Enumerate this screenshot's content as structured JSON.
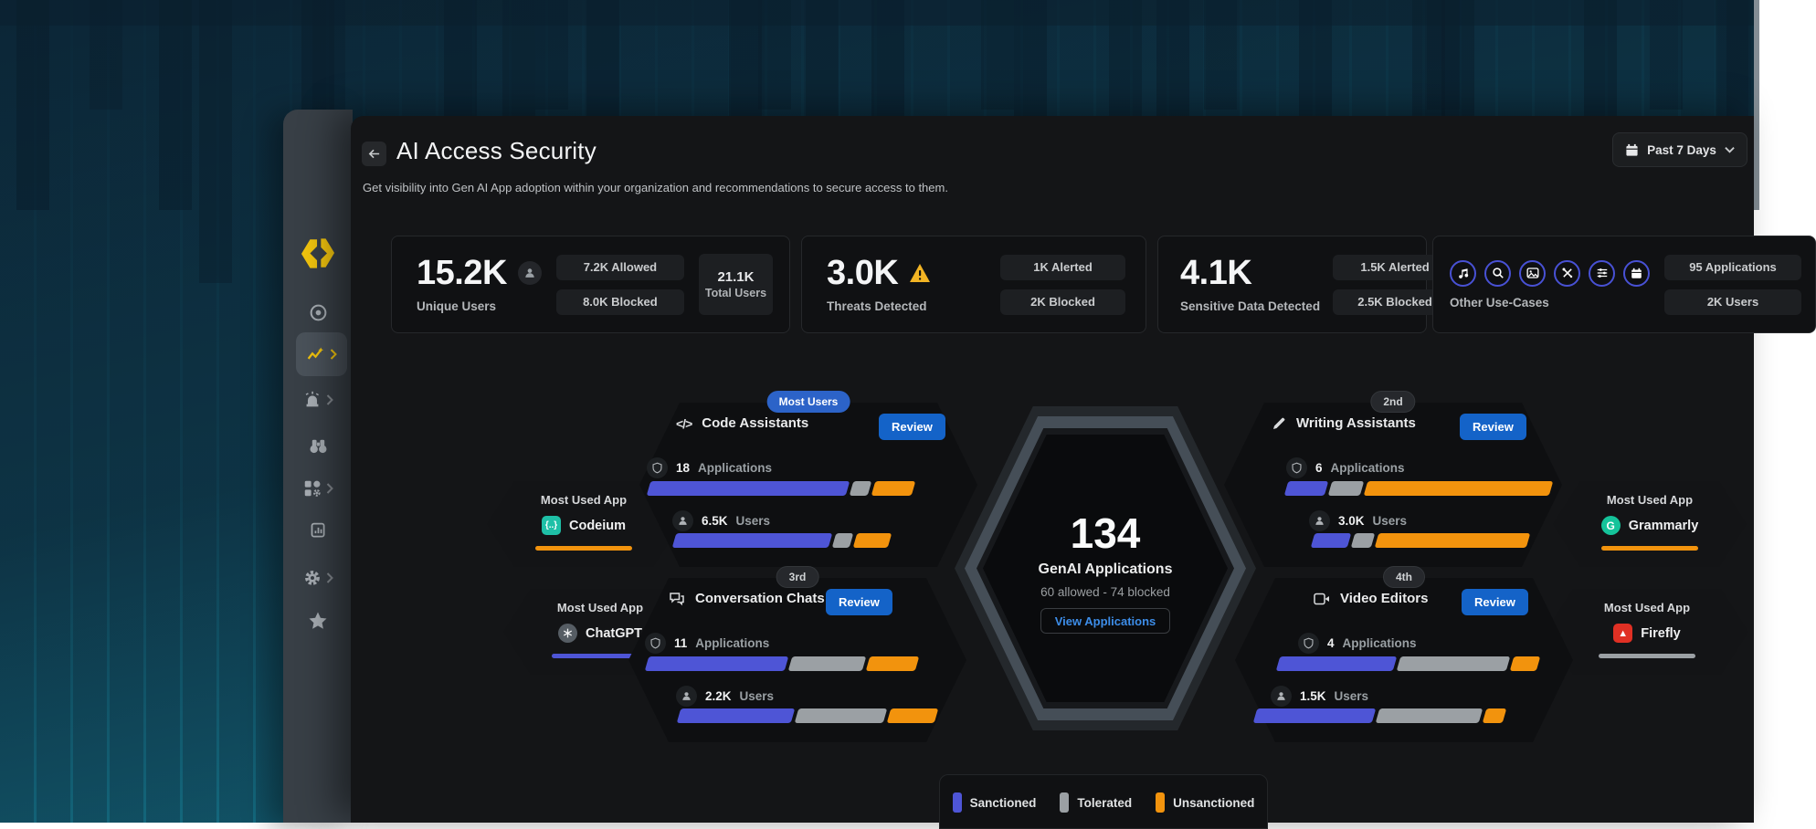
{
  "header": {
    "title": "AI Access Security",
    "subtitle": "Get visibility into Gen AI App adoption within your organization and recommendations to secure access to them.",
    "time_filter": "Past 7 Days"
  },
  "stat_cards": {
    "unique_users": {
      "value": "15.2K",
      "label": "Unique Users",
      "allowed": "7.2K Allowed",
      "blocked": "8.0K Blocked",
      "total_value": "21.1K",
      "total_label": "Total Users"
    },
    "threats": {
      "value": "3.0K",
      "label": "Threats Detected",
      "alerted": "1K Alerted",
      "blocked": "2K Blocked"
    },
    "sensitive_data": {
      "value": "4.1K",
      "label": "Sensitive Data Detected",
      "alerted": "1.5K Alerted",
      "blocked": "2.5K Blocked"
    },
    "other_use_cases": {
      "label": "Other Use-Cases",
      "apps": "95 Applications",
      "users": "2K Users",
      "icons": [
        "music",
        "search",
        "image",
        "tools",
        "filter-list",
        "calendar"
      ]
    }
  },
  "hexagon": {
    "value": "134",
    "label": "GenAI Applications",
    "sub": "60 allowed - 74 blocked",
    "button": "View Applications"
  },
  "categories": [
    {
      "rank_badge": "Most Users",
      "title": "Code Assistants",
      "review": "Review",
      "apps_count": "18",
      "apps_label": "Applications",
      "apps_segments": [
        74,
        7,
        15
      ],
      "users_count": "6.5K",
      "users_label": "Users",
      "users_segments": [
        72,
        8,
        16
      ]
    },
    {
      "rank_badge": "2nd",
      "title": "Writing Assistants",
      "review": "Review",
      "apps_count": "6",
      "apps_label": "Applications",
      "apps_segments": [
        15,
        12,
        69
      ],
      "users_count": "3.0K",
      "users_label": "Users",
      "users_segments": [
        17,
        9,
        70
      ]
    },
    {
      "rank_badge": "3rd",
      "title": "Conversation Chats",
      "review": "Review",
      "apps_count": "11",
      "apps_label": "Applications",
      "apps_segments": [
        51,
        27,
        18
      ],
      "users_count": "2.2K",
      "users_label": "Users",
      "users_segments": [
        44,
        34,
        18
      ]
    },
    {
      "rank_badge": "4th",
      "title": "Video Editors",
      "review": "Review",
      "apps_count": "4",
      "apps_label": "Applications",
      "apps_segments": [
        44,
        41,
        10
      ],
      "users_count": "1.5K",
      "users_label": "Users",
      "users_segments": [
        47,
        41,
        8
      ]
    }
  ],
  "most_used_apps": [
    {
      "label": "Most Used App",
      "name": "Codeium",
      "underline_color": "#f2930d",
      "icon_bg": "#1fc0a7",
      "icon_glyph": "{..}"
    },
    {
      "label": "Most Used App",
      "name": "ChatGPT",
      "underline_color": "#4e55d6",
      "icon_bg": "#565d64",
      "icon_glyph": ""
    },
    {
      "label": "Most Used App",
      "name": "Grammarly",
      "underline_color": "#f2930d",
      "icon_bg": "#15c39a",
      "icon_glyph": "G"
    },
    {
      "label": "Most Used App",
      "name": "Firefly",
      "underline_color": "#9ba0a4",
      "icon_bg": "#e03024",
      "icon_glyph": "▲"
    }
  ],
  "legend": [
    {
      "label": "Sanctioned",
      "color": "#4e55d6"
    },
    {
      "label": "Tolerated",
      "color": "#9ba0a4"
    },
    {
      "label": "Unsanctioned",
      "color": "#f2930d"
    }
  ],
  "sidebar_items": [
    "logo",
    "monitor",
    "ai-access-security",
    "alerts",
    "investigate",
    "apps",
    "reports",
    "settings",
    "favorites"
  ]
}
